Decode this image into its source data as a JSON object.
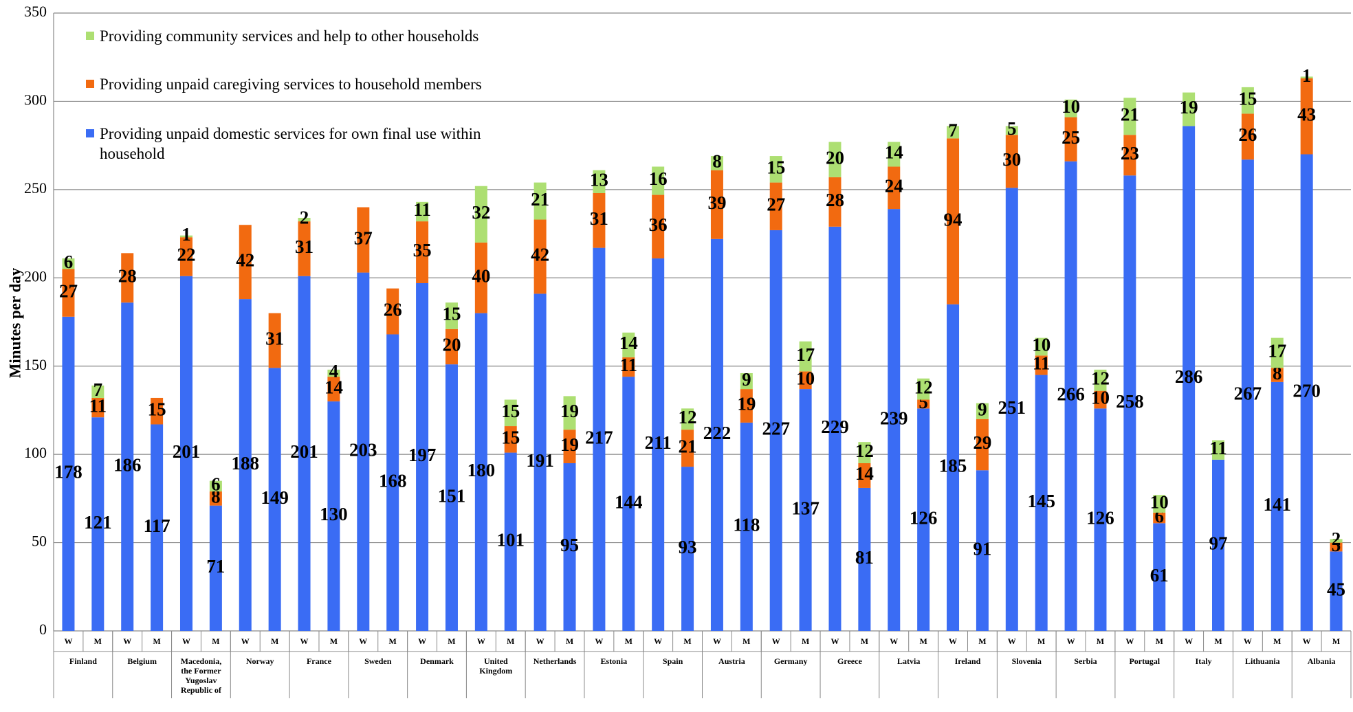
{
  "chart_data": {
    "type": "stacked_bar",
    "y_label": "Minutes per day",
    "groups": [
      "Finland",
      "Belgium",
      "Macedonia, the Former Yugoslav Republic of",
      "Norway",
      "France",
      "Sweden",
      "Denmark",
      "United Kingdom",
      "Netherlands",
      "Estonia",
      "Spain",
      "Austria",
      "Germany",
      "Greece",
      "Latvia",
      "Ireland",
      "Slovenia",
      "Serbia",
      "Portugal",
      "Italy",
      "Lithuania",
      "Albania"
    ],
    "categories": [
      "W",
      "M",
      "W",
      "M",
      "W",
      "M",
      "W",
      "M",
      "W",
      "M",
      "W",
      "M",
      "W",
      "M",
      "W",
      "M",
      "W",
      "M",
      "W",
      "M",
      "W",
      "M",
      "W",
      "M",
      "W",
      "M",
      "W",
      "M",
      "W",
      "M",
      "W",
      "M",
      "W",
      "M",
      "W",
      "M",
      "W",
      "M",
      "W",
      "M",
      "W",
      "M",
      "W",
      "M"
    ],
    "series": [
      {
        "name": "Providing unpaid domestic services for own final use within household",
        "color": "#3a6cf4",
        "values": [
          178,
          121,
          186,
          117,
          201,
          71,
          188,
          149,
          201,
          130,
          203,
          168,
          197,
          151,
          180,
          101,
          191,
          95,
          217,
          144,
          211,
          93,
          222,
          118,
          227,
          137,
          229,
          81,
          239,
          126,
          185,
          91,
          251,
          145,
          266,
          126,
          258,
          61,
          286,
          97,
          267,
          141,
          270,
          45
        ]
      },
      {
        "name": "Providing unpaid caregiving services  to household members",
        "color": "#f26a10",
        "values": [
          27,
          11,
          28,
          15,
          22,
          8,
          42,
          31,
          31,
          14,
          37,
          26,
          35,
          20,
          40,
          15,
          42,
          19,
          31,
          11,
          36,
          21,
          39,
          19,
          27,
          10,
          28,
          14,
          24,
          5,
          94,
          29,
          30,
          11,
          25,
          10,
          23,
          6,
          null,
          null,
          26,
          8,
          43,
          5
        ]
      },
      {
        "name": "Providing community services and help to other households",
        "color": "#addf72",
        "values": [
          6,
          7,
          null,
          null,
          1,
          6,
          null,
          null,
          2,
          4,
          null,
          null,
          11,
          15,
          32,
          15,
          21,
          19,
          13,
          14,
          16,
          12,
          8,
          9,
          15,
          17,
          20,
          12,
          14,
          12,
          7,
          9,
          5,
          10,
          10,
          12,
          21,
          10,
          19,
          11,
          15,
          17,
          1,
          2
        ]
      }
    ],
    "ylim": [
      0,
      350
    ],
    "yticks": [
      0,
      50,
      100,
      150,
      200,
      250,
      300,
      350
    ],
    "grid": true,
    "legend": "top-left"
  }
}
